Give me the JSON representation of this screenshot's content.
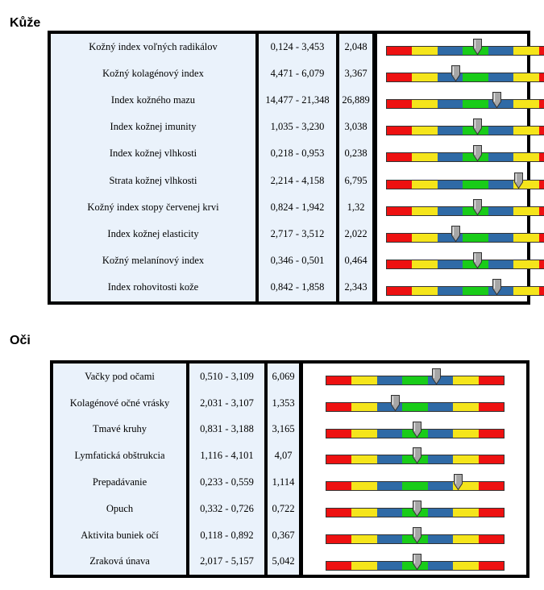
{
  "colors": {
    "red": "#ee1111",
    "yellow": "#f5e51b",
    "blue": "#2f6aa6",
    "green": "#19cc19",
    "cell_bg": "#eaf2fb",
    "border": "#000000",
    "pointer": "#a6a6a6"
  },
  "scale_segments": [
    "red",
    "yellow",
    "blue",
    "green",
    "blue",
    "yellow",
    "red"
  ],
  "sections": [
    {
      "title": "Kůže",
      "rows": [
        {
          "name": "Kožný index voľných radikálov",
          "range": "0,124 - 3,453",
          "value": "2,048",
          "marker": 0.51
        },
        {
          "name": "Kožný kolagénový index",
          "range": "4,471 - 6,079",
          "value": "3,367",
          "marker": 0.39
        },
        {
          "name": "Index kožného mazu",
          "range": "14,477 - 21,348",
          "value": "26,889",
          "marker": 0.62
        },
        {
          "name": "Index kožnej imunity",
          "range": "1,035 - 3,230",
          "value": "3,038",
          "marker": 0.51
        },
        {
          "name": "Index kožnej vlhkosti",
          "range": "0,218 - 0,953",
          "value": "0,238",
          "marker": 0.51
        },
        {
          "name": "Strata kožnej vlhkosti",
          "range": "2,214 - 4,158",
          "value": "6,795",
          "marker": 0.74
        },
        {
          "name": "Kožný index stopy červenej krvi",
          "range": "0,824 - 1,942",
          "value": "1,32",
          "marker": 0.51
        },
        {
          "name": "Index kožnej elasticity",
          "range": "2,717 - 3,512",
          "value": "2,022",
          "marker": 0.39
        },
        {
          "name": "Kožný melanínový index",
          "range": "0,346 - 0,501",
          "value": "0,464",
          "marker": 0.51
        },
        {
          "name": "Index rohovitosti kože",
          "range": "0,842 - 1,858",
          "value": "2,343",
          "marker": 0.62
        }
      ]
    },
    {
      "title": "Oči",
      "rows": [
        {
          "name": "Vačky pod očami",
          "range": "0,510 - 3,109",
          "value": "6,069",
          "marker": 0.62
        },
        {
          "name": "Kolagénové očné vrásky",
          "range": "2,031 - 3,107",
          "value": "1,353",
          "marker": 0.39
        },
        {
          "name": "Tmavé kruhy",
          "range": "0,831 - 3,188",
          "value": "3,165",
          "marker": 0.51
        },
        {
          "name": "Lymfatická obštrukcia",
          "range": "1,116 - 4,101",
          "value": "4,07",
          "marker": 0.51
        },
        {
          "name": "Prepadávanie",
          "range": "0,233 - 0,559",
          "value": "1,114",
          "marker": 0.74
        },
        {
          "name": "Opuch",
          "range": "0,332 - 0,726",
          "value": "0,722",
          "marker": 0.51
        },
        {
          "name": "Aktivita buniek očí",
          "range": "0,118 - 0,892",
          "value": "0,367",
          "marker": 0.51
        },
        {
          "name": "Zraková únava",
          "range": "2,017 - 5,157",
          "value": "5,042",
          "marker": 0.51
        }
      ]
    }
  ]
}
